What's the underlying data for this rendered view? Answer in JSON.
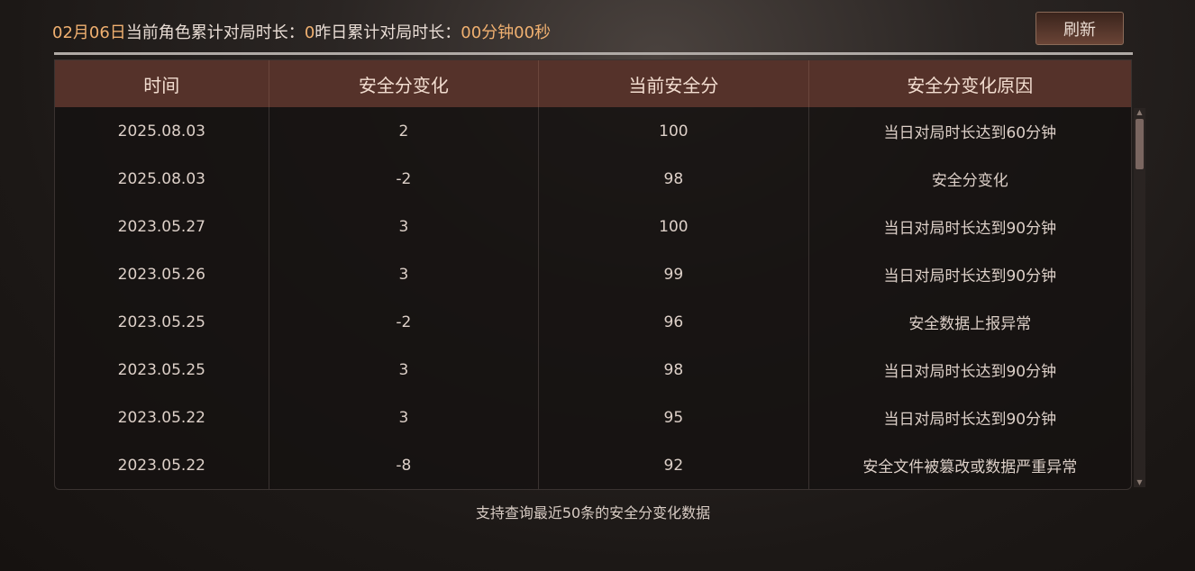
{
  "summary": {
    "date": "02月06日",
    "current_label": "当前角色累计对局时长：",
    "current_value": "0",
    "yesterday_label": "昨日累计对局时长：",
    "yesterday_value": "00分钟00秒"
  },
  "refresh_label": "刷新",
  "table": {
    "headers": [
      "时间",
      "安全分变化",
      "当前安全分",
      "安全分变化原因"
    ],
    "rows": [
      [
        "2025.08.03",
        "2",
        "100",
        "当日对局时长达到60分钟"
      ],
      [
        "2025.08.03",
        "-2",
        "98",
        "安全分变化"
      ],
      [
        "2023.05.27",
        "3",
        "100",
        "当日对局时长达到90分钟"
      ],
      [
        "2023.05.26",
        "3",
        "99",
        "当日对局时长达到90分钟"
      ],
      [
        "2023.05.25",
        "-2",
        "96",
        "安全数据上报异常"
      ],
      [
        "2023.05.25",
        "3",
        "98",
        "当日对局时长达到90分钟"
      ],
      [
        "2023.05.22",
        "3",
        "95",
        "当日对局时长达到90分钟"
      ],
      [
        "2023.05.22",
        "-8",
        "92",
        "安全文件被篡改或数据严重异常"
      ]
    ]
  },
  "footer": "支持查询最近50条的安全分变化数据",
  "colors": {
    "accent": "#f0b070",
    "header_bg": "#55322a"
  }
}
